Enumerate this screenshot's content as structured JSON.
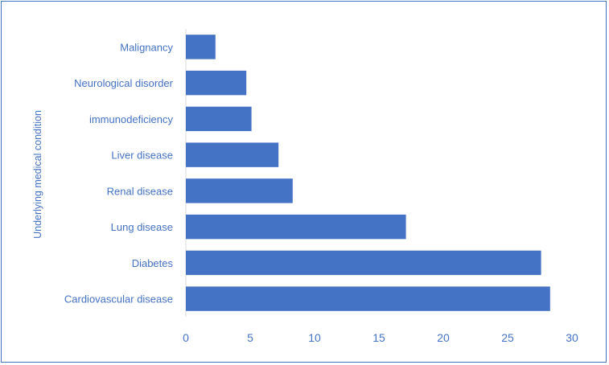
{
  "chart_data": {
    "type": "bar",
    "orientation": "horizontal",
    "title": "",
    "xlabel": "",
    "ylabel": "Underlying medical condition",
    "categories": [
      "Malignancy",
      "Neurological disorder",
      "immunodeficiency",
      "Liver disease",
      "Renal disease",
      "Lung disease",
      "Diabetes",
      "Cardiovascular disease"
    ],
    "values": [
      2.3,
      4.7,
      5.1,
      7.2,
      8.3,
      17.1,
      27.6,
      28.3
    ],
    "xlim": [
      0,
      30
    ],
    "xticks": [
      "0",
      "5",
      "10",
      "15",
      "20",
      "25",
      "30"
    ],
    "grid": false,
    "legend": "none",
    "colors": {
      "bar": "#4472c4",
      "text": "#4472c4",
      "border": "#4472c4"
    }
  }
}
